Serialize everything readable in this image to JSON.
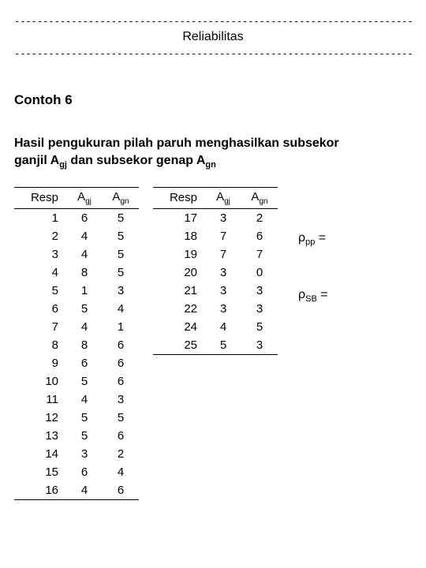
{
  "header": {
    "dash": "------------------------------------------------------------------------------",
    "title": "Reliabilitas"
  },
  "heading": "Contoh 6",
  "desc": {
    "line1a": "Hasil pengukuran pilah paruh menghasilkan subsekor",
    "line2a": "ganjil A",
    "sub1": "gj",
    "line2b": "  dan subsekor genap A",
    "sub2": "gn"
  },
  "tableHeaders": {
    "resp": "Resp",
    "agj_main": "A",
    "agj_sub": "gj",
    "agn_main": "A",
    "agn_sub": "gn"
  },
  "table1": {
    "rows": [
      {
        "r": "1",
        "a": "6",
        "b": "5"
      },
      {
        "r": "2",
        "a": "4",
        "b": "5"
      },
      {
        "r": "3",
        "a": "4",
        "b": "5"
      },
      {
        "r": "4",
        "a": "8",
        "b": "5"
      },
      {
        "r": "5",
        "a": "1",
        "b": "3"
      },
      {
        "r": "6",
        "a": "5",
        "b": "4"
      },
      {
        "r": "7",
        "a": "4",
        "b": "1"
      },
      {
        "r": "8",
        "a": "8",
        "b": "6"
      },
      {
        "r": "9",
        "a": "6",
        "b": "6"
      },
      {
        "r": "10",
        "a": "5",
        "b": "6"
      },
      {
        "r": "11",
        "a": "4",
        "b": "3"
      },
      {
        "r": "12",
        "a": "5",
        "b": "5"
      },
      {
        "r": "13",
        "a": "5",
        "b": "6"
      },
      {
        "r": "14",
        "a": "3",
        "b": "2"
      },
      {
        "r": "15",
        "a": "6",
        "b": "4"
      },
      {
        "r": "16",
        "a": "4",
        "b": "6"
      }
    ]
  },
  "table2": {
    "rows": [
      {
        "r": "17",
        "a": "3",
        "b": "2"
      },
      {
        "r": "18",
        "a": "7",
        "b": "6"
      },
      {
        "r": "19",
        "a": "7",
        "b": "7"
      },
      {
        "r": "20",
        "a": "3",
        "b": "0"
      },
      {
        "r": "21",
        "a": "3",
        "b": "3"
      },
      {
        "r": "22",
        "a": "3",
        "b": "3"
      },
      {
        "r": "24",
        "a": "4",
        "b": "5"
      },
      {
        "r": "25",
        "a": "5",
        "b": "3"
      }
    ]
  },
  "notes": {
    "rho": "ρ",
    "pp": "pp",
    "sb": "SB",
    "eq": " ="
  }
}
